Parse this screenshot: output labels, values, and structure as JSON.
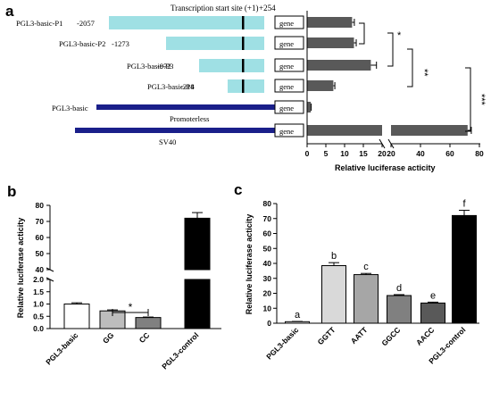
{
  "panels": {
    "a": "a",
    "b": "b",
    "c": "c"
  },
  "chart_data": [
    {
      "panel": "a",
      "type": "bar",
      "orientation": "horizontal",
      "axis_break": [
        20,
        20
      ],
      "header": "Transcription start site (+1)",
      "tss_end_label": "+254",
      "constructs": [
        {
          "name": "PGL3-basic-P1",
          "start": "-2057",
          "value": 12,
          "error": 0.6,
          "bar": "cyan"
        },
        {
          "name": "PGL3-basic-P2",
          "start": "-1273",
          "value": 12.5,
          "error": 0.6,
          "bar": "cyan"
        },
        {
          "name": "PGL3-basic-P3",
          "start": "-972",
          "value": 17,
          "error": 1.5,
          "bar": "cyan"
        },
        {
          "name": "PGL3-basic-P4",
          "start": "-218",
          "value": 7,
          "error": 0.4,
          "bar": "cyan"
        },
        {
          "name": "PGL3-basic",
          "start": "",
          "value": 1,
          "error": 0.1,
          "bar": "navy",
          "note": "Promoterless"
        },
        {
          "name": "",
          "start": "",
          "value": 72,
          "error": 2.5,
          "bar": "navy",
          "note": "SV40"
        }
      ],
      "gene_label": "gene",
      "xlabel": "Relative luciferase acticity",
      "xticks": [
        "0",
        "5",
        "10",
        "15",
        "20",
        "20",
        "40",
        "60",
        "80"
      ],
      "significance": [
        "*",
        "**",
        "***"
      ],
      "colors": {
        "promoter_fragment": "#9fe0e4",
        "vector_line": "#1a1f8a",
        "bar": "#595959",
        "tss_marker": "#000000"
      }
    },
    {
      "panel": "b",
      "type": "bar",
      "axis_break": [
        2,
        40
      ],
      "categories": [
        "PGL3-basic",
        "GG",
        "CC",
        "PGL3-control"
      ],
      "values": [
        1.0,
        0.72,
        0.45,
        72
      ],
      "errors": [
        0.05,
        0.04,
        0.02,
        3.5
      ],
      "colors": [
        "#ffffff",
        "#bdbdbd",
        "#808080",
        "#000000"
      ],
      "ylabel": "Relative luciferase acticity",
      "yticks_lower": [
        "0.0",
        "0.5",
        "1.0",
        "1.5",
        "2.0"
      ],
      "yticks_upper": [
        "40",
        "50",
        "60",
        "70",
        "80"
      ],
      "significance": "*"
    },
    {
      "panel": "c",
      "type": "bar",
      "categories": [
        "PGL3-basic",
        "GGTT",
        "AATT",
        "GGCC",
        "AACC",
        "PGL3-control"
      ],
      "values": [
        1,
        38.5,
        32.5,
        18.5,
        13.5,
        72
      ],
      "errors": [
        0.2,
        2.0,
        0.8,
        0.6,
        0.6,
        3.5
      ],
      "letters": [
        "a",
        "b",
        "c",
        "d",
        "e",
        "f"
      ],
      "colors": [
        "#ffffff",
        "#d9d9d9",
        "#a6a6a6",
        "#808080",
        "#595959",
        "#000000"
      ],
      "ylabel": "Relative luciferase acticity",
      "ylim": [
        0,
        80
      ],
      "yticks": [
        "0",
        "10",
        "20",
        "30",
        "40",
        "50",
        "60",
        "70",
        "80"
      ]
    }
  ]
}
